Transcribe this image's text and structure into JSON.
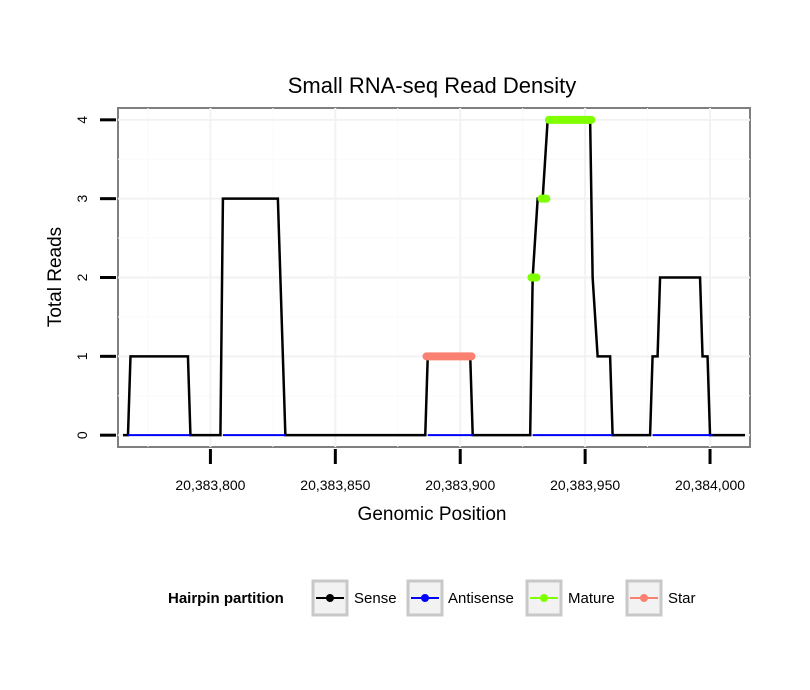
{
  "chart_data": {
    "type": "line",
    "title": "Small RNA-seq Read Density",
    "xlabel": "Genomic Position",
    "ylabel": "Total Reads",
    "xlim": [
      20383763,
      20384016
    ],
    "ylim": [
      -0.15,
      4.15
    ],
    "x_ticks": [
      20383800,
      20383850,
      20383900,
      20383950,
      20384000
    ],
    "x_tick_labels": [
      "20,383,800",
      "20,383,850",
      "20,383,900",
      "20,383,950",
      "20,384,000"
    ],
    "y_ticks": [
      0,
      1,
      2,
      3,
      4
    ],
    "y_tick_labels": [
      "0",
      "1",
      "2",
      "3",
      "4"
    ],
    "grid": true,
    "legend": {
      "title": "Hairpin partition",
      "position": "bottom",
      "entries": [
        {
          "name": "Sense",
          "color": "#000000"
        },
        {
          "name": "Antisense",
          "color": "#0000ff"
        },
        {
          "name": "Mature",
          "color": "#7fff00"
        },
        {
          "name": "Star",
          "color": "#fa8072"
        }
      ]
    },
    "series": [
      {
        "name": "Sense",
        "color": "#000000",
        "x": [
          20383765,
          20383767,
          20383768,
          20383791,
          20383792,
          20383804,
          20383805,
          20383827,
          20383828,
          20383830,
          20383886,
          20383887,
          20383904,
          20383905,
          20383928,
          20383929,
          20383931,
          20383933,
          20383935,
          20383952,
          20383953,
          20383955,
          20383960,
          20383961,
          20383976,
          20383977,
          20383979,
          20383980,
          20383996,
          20383997,
          20383999,
          20384000,
          20384014
        ],
        "values": [
          0,
          0,
          1,
          1,
          0,
          0,
          3,
          3,
          2,
          0,
          0,
          1,
          1,
          0,
          0,
          2,
          3,
          3,
          4,
          4,
          2,
          1,
          1,
          0,
          0,
          1,
          1,
          2,
          2,
          1,
          1,
          0,
          0
        ]
      },
      {
        "name": "Antisense",
        "color": "#0000ff",
        "x": [
          20383767,
          20383792,
          20383805,
          20383830,
          20383887,
          20383905,
          20383929,
          20383961,
          20383977,
          20384001
        ],
        "values": [
          0,
          0,
          0,
          0,
          0,
          0,
          0,
          0,
          0,
          0
        ]
      },
      {
        "name": "Mature",
        "color": "#7fff00",
        "x": [
          20383928.5,
          20383930.5,
          20383932.5,
          20383934.5,
          20383935.5,
          20383952.5
        ],
        "values": [
          2,
          2,
          3,
          3,
          4,
          4
        ],
        "segments": [
          [
            0,
            1
          ],
          [
            2,
            3
          ],
          [
            4,
            5
          ]
        ]
      },
      {
        "name": "Star",
        "color": "#fa8072",
        "x": [
          20383886.5,
          20383904.5
        ],
        "values": [
          1,
          1
        ],
        "segments": [
          [
            0,
            1
          ]
        ]
      }
    ]
  }
}
